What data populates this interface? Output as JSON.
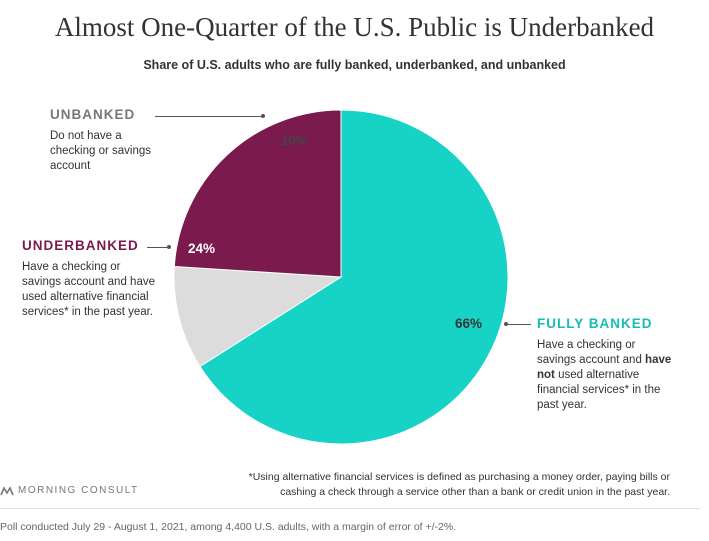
{
  "chart_data": {
    "type": "pie",
    "title": "Almost One-Quarter of the U.S. Public is Underbanked",
    "subtitle": "Share of U.S. adults who are fully banked, underbanked, and unbanked",
    "slices": [
      {
        "label": "FULLY BANKED",
        "value": 66,
        "value_label": "66%",
        "color": "#16d3c6",
        "description_before": "Have a checking or savings account and ",
        "description_bold": "have not",
        "description_after": " used alternative financial services* in the past year.",
        "label_color": "#16bdb2"
      },
      {
        "label": "UNBANKED",
        "value": 10,
        "value_label": "10%",
        "color": "#dcdcdc",
        "description": "Do not have a checking or savings account",
        "label_color": "#777777"
      },
      {
        "label": "UNDERBANKED",
        "value": 24,
        "value_label": "24%",
        "color": "#7b1a4c",
        "description": "Have a checking or savings account and have used alternative financial services* in the past year.",
        "label_color": "#7b1a4c"
      }
    ],
    "footnote": "*Using alternative financial services is defined as purchasing a money order, paying bills or cashing a check through a service other than a bank or credit union in the past year.",
    "source_note": "Poll conducted July 29 - August 1, 2021, among 4,400 U.S. adults, with a margin of error of +/-2%."
  },
  "brand": {
    "name": "MORNING CONSULT",
    "color": "#777777"
  }
}
